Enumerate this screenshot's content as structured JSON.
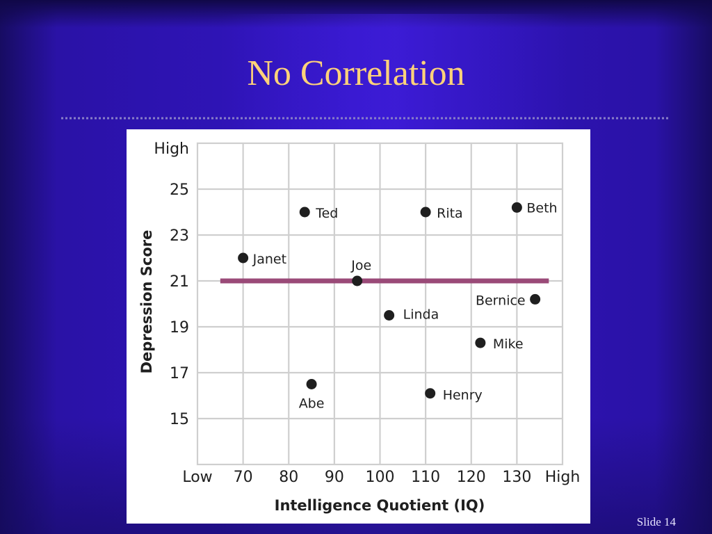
{
  "slide": {
    "title": "No Correlation",
    "slide_number": "Slide 14"
  },
  "colors": {
    "background": "#2a12a6",
    "title": "#ffd27a",
    "trend_line": "#9a4a78",
    "point": "#1f1f1f",
    "grid": "#cfcfcf"
  },
  "chart_data": {
    "type": "scatter",
    "xlabel": "Intelligence Quotient (IQ)",
    "ylabel": "Depression Score",
    "x_low_label": "Low",
    "x_high_label": "High",
    "y_high_label": "High",
    "x_ticks": [
      70,
      80,
      90,
      100,
      110,
      120,
      130
    ],
    "y_ticks": [
      15,
      17,
      19,
      21,
      23,
      25
    ],
    "xlim": [
      60,
      140
    ],
    "ylim": [
      13,
      27
    ],
    "grid": true,
    "points": [
      {
        "name": "Janet",
        "x": 70,
        "y": 22.0
      },
      {
        "name": "Ted",
        "x": 83.5,
        "y": 24.0
      },
      {
        "name": "Abe",
        "x": 85,
        "y": 16.5
      },
      {
        "name": "Joe",
        "x": 95,
        "y": 21.0
      },
      {
        "name": "Linda",
        "x": 102,
        "y": 19.5
      },
      {
        "name": "Rita",
        "x": 110,
        "y": 24.0
      },
      {
        "name": "Henry",
        "x": 111,
        "y": 16.1
      },
      {
        "name": "Mike",
        "x": 122,
        "y": 18.3
      },
      {
        "name": "Beth",
        "x": 130,
        "y": 24.2
      },
      {
        "name": "Bernice",
        "x": 134,
        "y": 20.2
      }
    ],
    "trend_line": {
      "x": [
        65,
        137
      ],
      "y": [
        21,
        21
      ]
    }
  }
}
